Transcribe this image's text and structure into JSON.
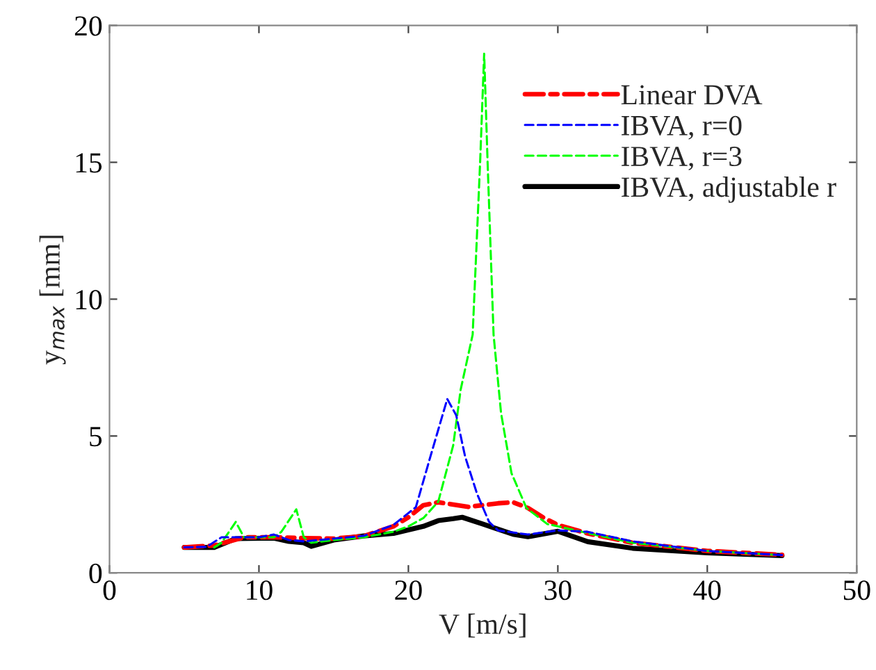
{
  "chart_data": {
    "type": "line",
    "xlabel": "V [m/s]",
    "ylabel": "y$_{max}$ [mm]",
    "xlim": [
      0,
      50
    ],
    "ylim": [
      0,
      20
    ],
    "xticks": [
      0,
      10,
      20,
      30,
      40,
      50
    ],
    "yticks": [
      0,
      5,
      10,
      15,
      20
    ],
    "grid": false,
    "legend": "top right",
    "marker": "none",
    "series": [
      {
        "name": "Linear DVA",
        "color": "#ff0000",
        "line_style": "dashdot",
        "x": [
          5,
          7,
          8,
          9,
          11,
          13,
          15,
          17,
          19,
          20,
          21,
          22,
          24,
          26,
          27,
          28,
          29,
          30,
          32,
          35,
          40,
          45
        ],
        "values": [
          0.93,
          1.0,
          1.15,
          1.3,
          1.3,
          1.27,
          1.25,
          1.34,
          1.7,
          2.03,
          2.47,
          2.58,
          2.41,
          2.54,
          2.58,
          2.37,
          2.03,
          1.75,
          1.44,
          1.1,
          0.8,
          0.66
        ]
      },
      {
        "name": "IBVA, r=0",
        "color": "#0000ff",
        "line_style": "dashed",
        "x": [
          5,
          6.5,
          7.5,
          9,
          10,
          11,
          12,
          13,
          15,
          17,
          19,
          20.5,
          21.5,
          22.6,
          23.2,
          23.8,
          24.6,
          25.4,
          26,
          28,
          30,
          32,
          35,
          40,
          45
        ],
        "values": [
          0.93,
          0.95,
          1.3,
          1.3,
          1.3,
          1.4,
          1.2,
          1.15,
          1.25,
          1.35,
          1.75,
          2.4,
          4.3,
          6.35,
          5.76,
          4.24,
          2.88,
          1.86,
          1.55,
          1.4,
          1.55,
          1.5,
          1.15,
          0.8,
          0.65
        ]
      },
      {
        "name": "IBVA, r=3",
        "color": "#00ff00",
        "line_style": "dashed",
        "x": [
          7,
          7.5,
          8.45,
          9,
          10,
          11,
          11.5,
          12.5,
          13,
          13.5,
          15,
          17,
          19,
          20,
          21,
          22,
          23,
          23.5,
          24.3,
          24.8,
          25.07,
          25.3,
          25.7,
          26.2,
          26.9,
          27.9,
          29.3,
          30,
          32,
          35,
          40,
          44.5
        ],
        "values": [
          0.93,
          1.1,
          1.86,
          1.3,
          1.3,
          1.3,
          1.5,
          2.32,
          1.3,
          1.1,
          1.2,
          1.3,
          1.5,
          1.7,
          2.0,
          2.6,
          4.66,
          6.7,
          8.7,
          15,
          18.97,
          15,
          8.7,
          5.84,
          3.64,
          2.37,
          1.78,
          1.7,
          1.45,
          1.1,
          0.8,
          0.66
        ]
      },
      {
        "name": "IBVA, adjustable r",
        "color": "#000000",
        "line_style": "solid",
        "x": [
          5,
          7,
          8.45,
          11,
          12,
          13,
          13.5,
          15,
          17,
          19,
          21,
          22,
          23,
          23.6,
          25,
          27,
          28,
          30,
          32,
          35,
          40,
          45
        ],
        "values": [
          0.93,
          0.93,
          1.25,
          1.27,
          1.15,
          1.1,
          0.97,
          1.2,
          1.35,
          1.44,
          1.7,
          1.91,
          1.98,
          2.03,
          1.78,
          1.41,
          1.32,
          1.52,
          1.14,
          0.9,
          0.73,
          0.63
        ]
      }
    ]
  }
}
